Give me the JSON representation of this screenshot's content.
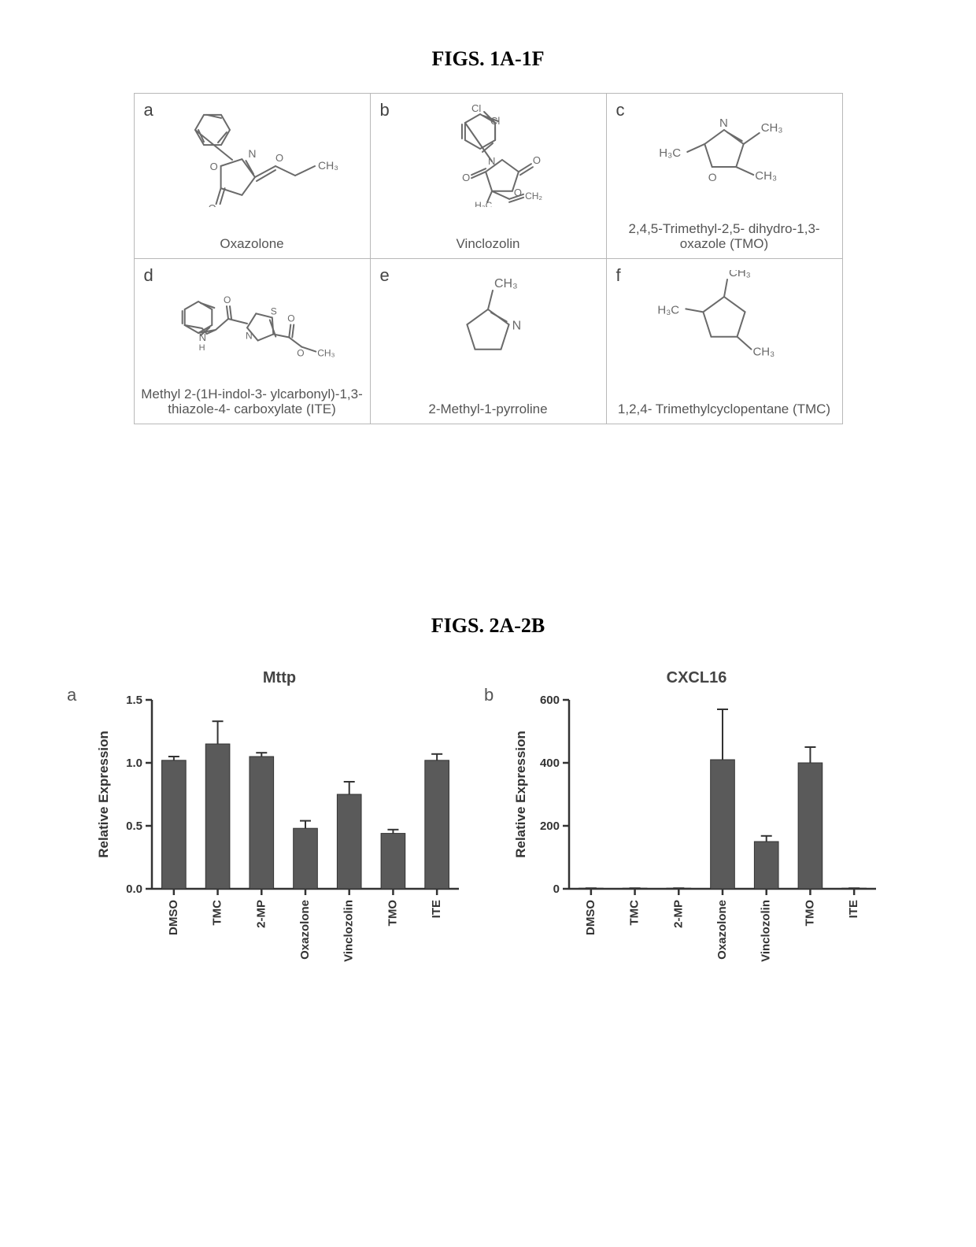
{
  "fig1": {
    "title": "FIGS. 1A-1F",
    "panels": [
      {
        "letter": "a",
        "caption": "Oxazolone"
      },
      {
        "letter": "b",
        "caption": "Vinclozolin"
      },
      {
        "letter": "c",
        "caption": "2,4,5-Trimethyl-2,5-\ndihydro-1,3-oxazole\n(TMO)"
      },
      {
        "letter": "d",
        "caption": "Methyl 2-(1H-indol-3-\nylcarbonyl)-1,3-thiazole-4-\ncarboxylate (ITE)"
      },
      {
        "letter": "e",
        "caption": "2-Methyl-1-pyrroline"
      },
      {
        "letter": "f",
        "caption": "1,2,4-\nTrimethylcyclopentane\n(TMC)"
      }
    ],
    "label_CH3": "CH₃",
    "label_H3C": "H₃C",
    "struct_color": "#6a6a6a",
    "struct_stroke": 2
  },
  "fig2": {
    "title": "FIGS. 2A-2B",
    "axis_color": "#333333",
    "bar_color": "#5a5a5a",
    "grid_bg": "#ffffff",
    "font_family": "Arial, sans-serif",
    "ylabel": "Relative Expression",
    "label_fontsize": 17,
    "tick_fontsize": 15,
    "title_fontsize": 20,
    "chart_a": {
      "letter": "a",
      "title": "Mttp",
      "categories": [
        "DMSO",
        "TMC",
        "2-MP",
        "Oxazolone",
        "Vinclozolin",
        "TMO",
        "ITE"
      ],
      "values": [
        1.02,
        1.15,
        1.05,
        0.48,
        0.75,
        0.44,
        1.02
      ],
      "errors": [
        0.03,
        0.18,
        0.03,
        0.06,
        0.1,
        0.03,
        0.05
      ],
      "ylim": [
        0.0,
        1.5
      ],
      "yticks": [
        0.0,
        0.5,
        1.0,
        1.5
      ],
      "ytick_labels": [
        "0.0",
        "0.5",
        "1.0",
        "1.5"
      ],
      "bar_width": 0.55
    },
    "chart_b": {
      "letter": "b",
      "title": "CXCL16",
      "categories": [
        "DMSO",
        "TMC",
        "2-MP",
        "Oxazolone",
        "Vinclozolin",
        "TMO",
        "ITE"
      ],
      "values": [
        2,
        2,
        2,
        410,
        150,
        400,
        2
      ],
      "errors": [
        0,
        0,
        0,
        160,
        18,
        50,
        0
      ],
      "ylim": [
        0,
        600
      ],
      "yticks": [
        0,
        200,
        400,
        600
      ],
      "ytick_labels": [
        "0",
        "200",
        "400",
        "600"
      ],
      "bar_width": 0.55
    }
  }
}
